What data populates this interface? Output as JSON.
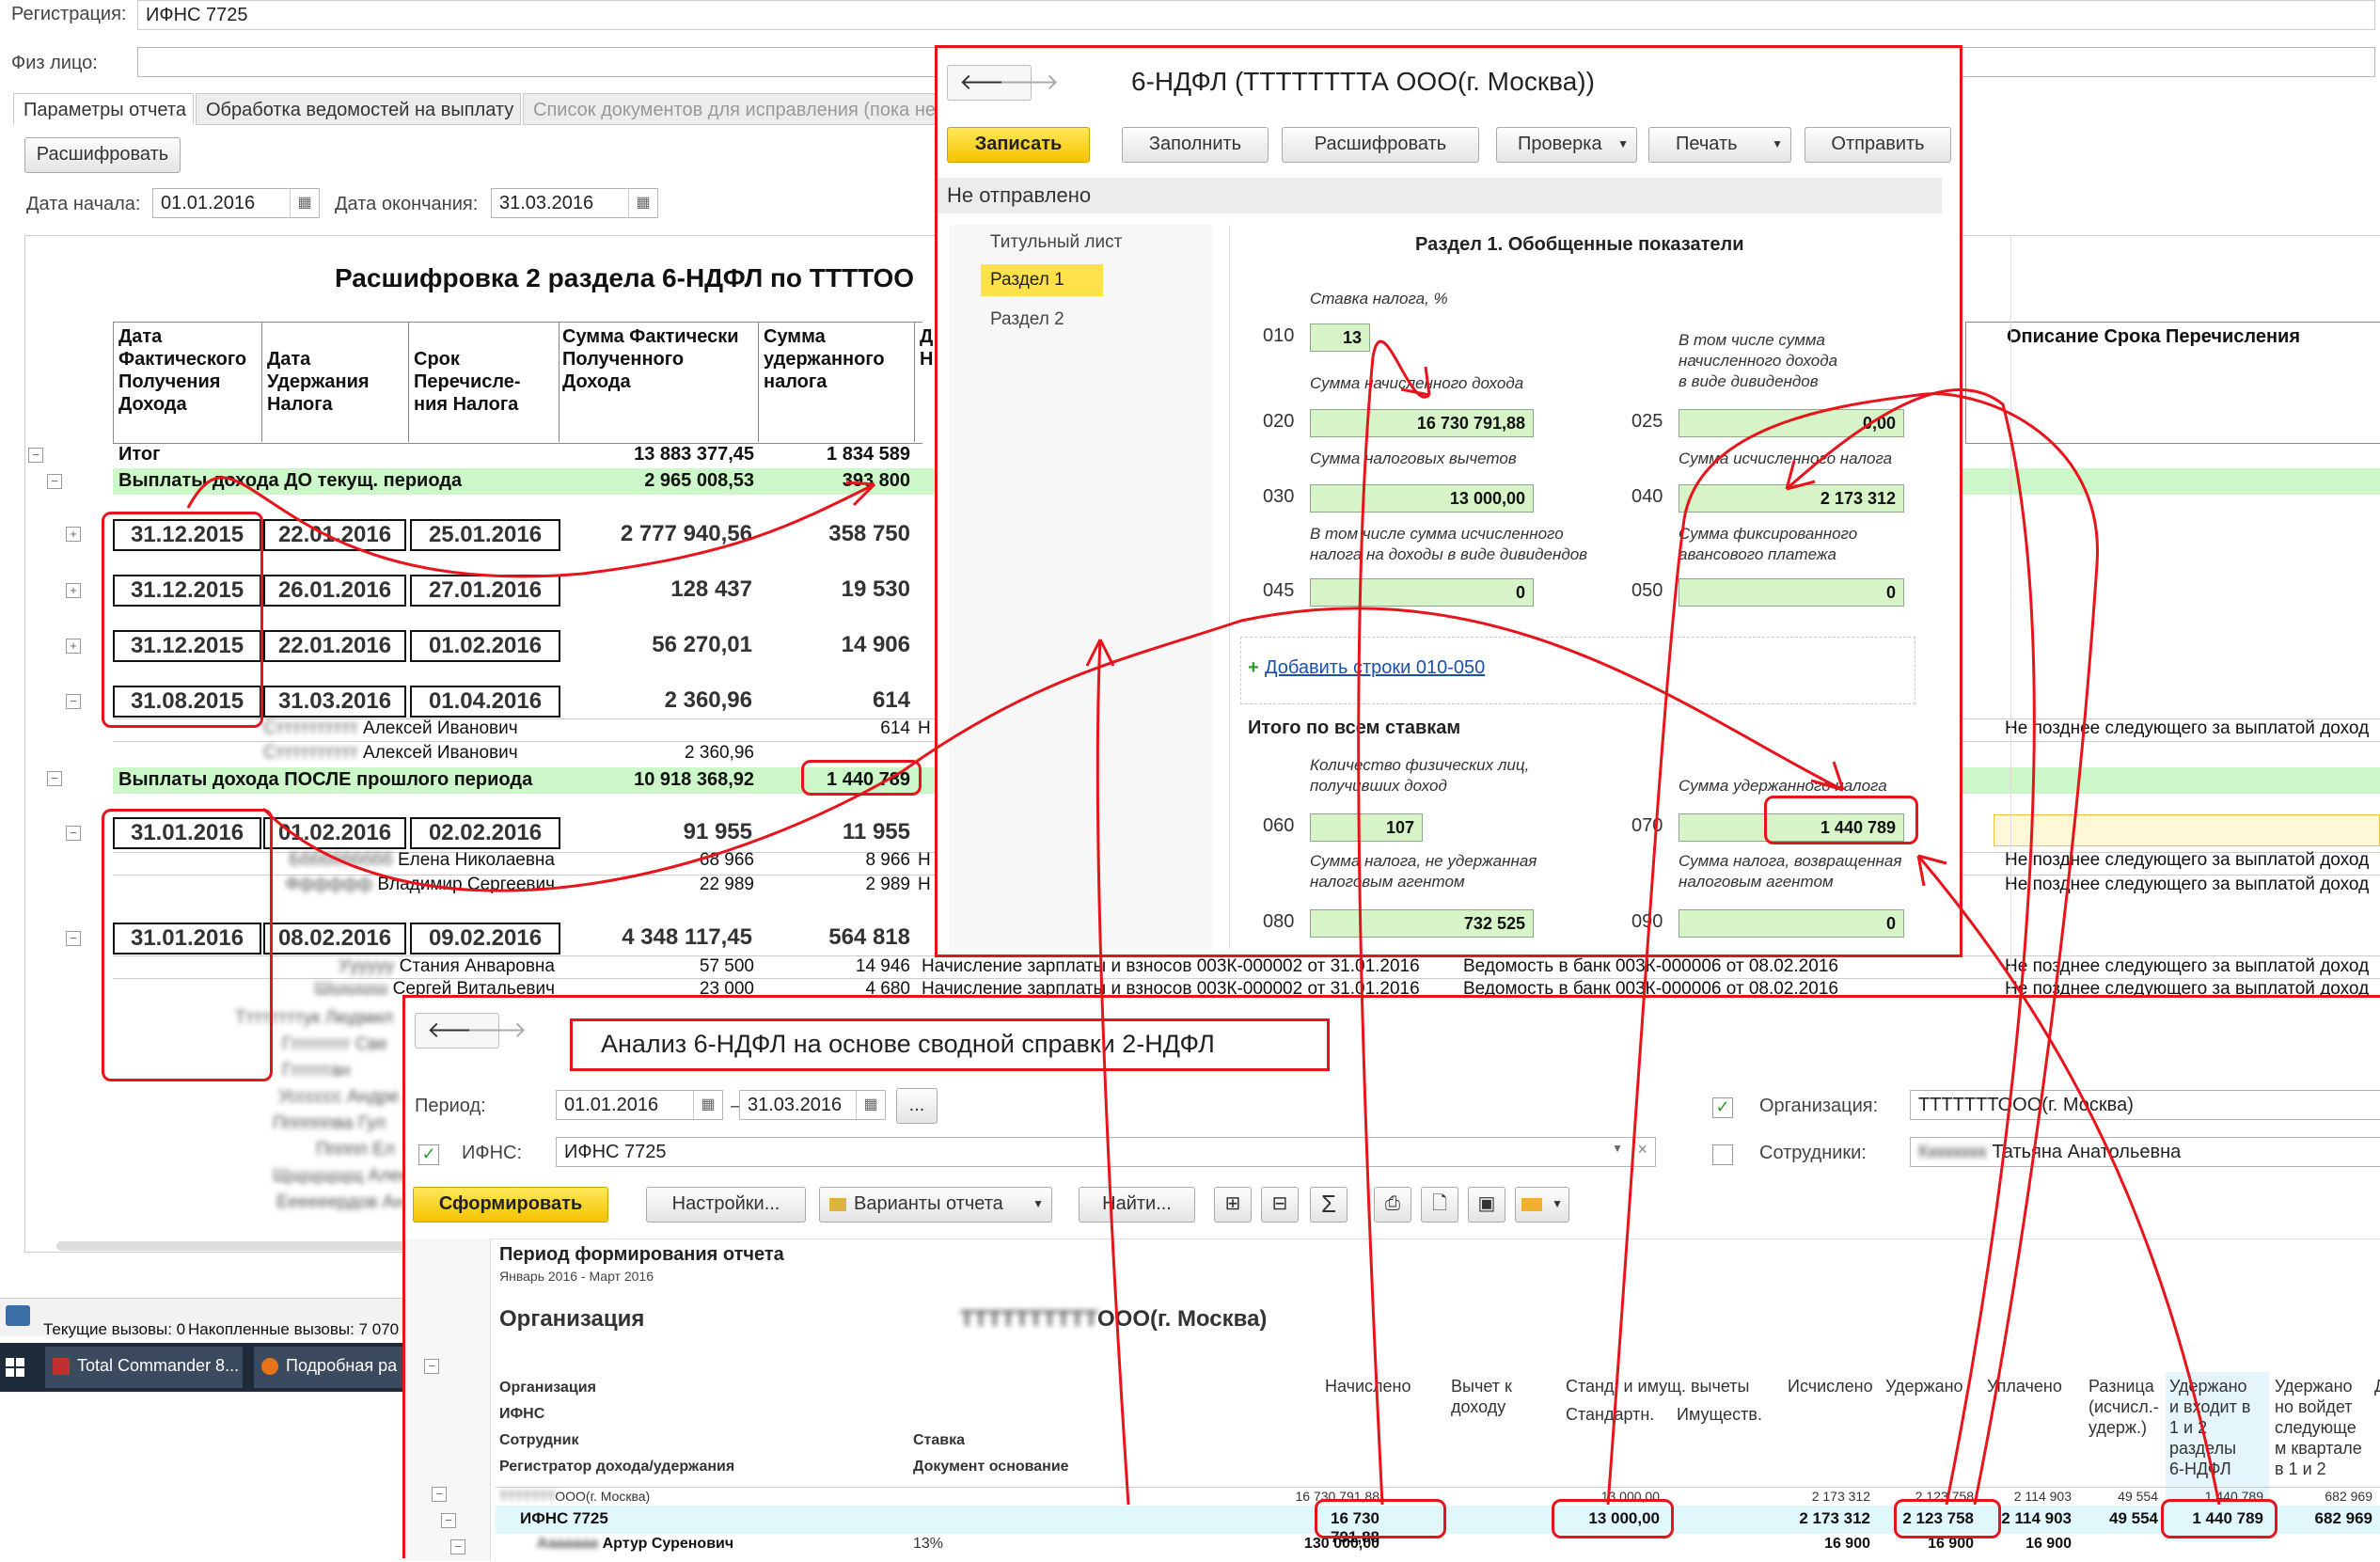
{
  "bg": {
    "registration_label": "Регистрация:",
    "registration_value": "ИФНС 7725",
    "person_label": "Физ лицо:",
    "tabs": [
      "Параметры отчета",
      "Обработка ведомостей на выплату",
      "Список документов для исправления (пока не"
    ],
    "decode_button": "Расшифровать",
    "start_label": "Дата начала:",
    "start_value": "01.01.2016",
    "end_label": "Дата окончания:",
    "end_value": "31.03.2016",
    "report_title": "Расшифровка 2 раздела 6-НДФЛ по ТТТТОО",
    "col_headers": [
      "Дата\nФактического\nПолучения\nДохода",
      "Дата\nУдержания\nНалога",
      "Срок\nПеречисле-\nния Налога",
      "Сумма Фактически\nПолученного\nДохода",
      "Сумма\nудержанного\nналога",
      "Д\nН"
    ],
    "desc_header": "Описание Срока Перечисления",
    "total_label": "Итог",
    "total_income": "13 883 377,45",
    "total_tax": "1 834 589",
    "group1_label": "Выплаты дохода ДО текущ. периода",
    "group1_income": "2 965 008,53",
    "group1_tax": "393 800",
    "group2_label": "Выплаты дохода ПОСЛЕ прошлого периода",
    "group2_income": "10 918 368,92",
    "group2_tax": "1 440 789",
    "rows": [
      {
        "d1": "31.12.2015",
        "d2": "22.01.2016",
        "d3": "25.01.2016",
        "inc": "2 777 940,56",
        "tax": "358 750"
      },
      {
        "d1": "31.12.2015",
        "d2": "26.01.2016",
        "d3": "27.01.2016",
        "inc": "128 437",
        "tax": "19 530"
      },
      {
        "d1": "31.12.2015",
        "d2": "22.01.2016",
        "d3": "01.02.2016",
        "inc": "56 270,01",
        "tax": "14 906"
      },
      {
        "d1": "31.08.2015",
        "d2": "31.03.2016",
        "d3": "01.04.2016",
        "inc": "2 360,96",
        "tax": "614"
      },
      {
        "d1": "31.01.2016",
        "d2": "01.02.2016",
        "d3": "02.02.2016",
        "inc": "91 955",
        "tax": "11 955"
      },
      {
        "d1": "31.01.2016",
        "d2": "08.02.2016",
        "d3": "09.02.2016",
        "inc": "4 348 117,45",
        "tax": "564 818"
      }
    ],
    "person_rows": [
      {
        "name": "Алексей Иванович",
        "inc": "",
        "tax": "614",
        "mark": "Н",
        "desc": "Не позднее следующего за выплатой доход"
      },
      {
        "name": "Алексей Иванович",
        "inc": "2 360,96",
        "tax": "",
        "mark": "",
        "desc": ""
      },
      {
        "name": "Елена Николаевна",
        "inc": "68 966",
        "tax": "8 966",
        "mark": "Н",
        "desc": "Не позднее следующего за выплатой доход"
      },
      {
        "name": "Владимир Сергеевич",
        "inc": "22 989",
        "tax": "2 989",
        "mark": "Н",
        "desc": "Не позднее следующего за выплатой доход"
      },
      {
        "name": "Стания Анваровна",
        "inc": "57 500",
        "tax": "14 946",
        "mark": "",
        "desc": "Не позднее следующего за выплатой доход"
      },
      {
        "name": "Сергей Витальевич",
        "inc": "23 000",
        "tax": "4 680",
        "mark": "",
        "desc": "Не позднее следующего за выплатой доход"
      }
    ],
    "doc_rows": [
      {
        "doc1": "Начисление зарплаты и взносов 003К-000002 от 31.01.2016",
        "doc2": "Ведомость в банк 003К-000006 от 08.02.2016"
      },
      {
        "doc1": "Начисление зарплаты и взносов 003К-000002 от 31.01.2016",
        "doc2": "Ведомость в банк 003К-000006 от 08.02.2016"
      }
    ],
    "status_calls": "Текущие вызовы: 0",
    "status_accum": "Накопленные вызовы: 7 070",
    "taskbar_items": [
      "Total Commander 8...",
      "Подробная ра"
    ]
  },
  "ndfl_window": {
    "title": "6-НДФЛ (ТТТТТТТТА ООО(г. Москва))",
    "buttons": [
      "Записать",
      "Заполнить",
      "Расшифровать",
      "Проверка",
      "Печать",
      "Отправить"
    ],
    "status": "Не отправлено",
    "nav": [
      "Титульный лист",
      "Раздел 1",
      "Раздел 2"
    ],
    "section_title": "Раздел 1. Обобщенные показатели",
    "fields": [
      {
        "code": "010",
        "label": "Ставка налога, %",
        "value": "13"
      },
      {
        "code": "020",
        "label": "Сумма начисленного дохода",
        "value": "16 730 791,88"
      },
      {
        "code": "025",
        "label": "В том числе сумма\nначисленного дохода\nв виде дивидендов",
        "value": "0,00"
      },
      {
        "code": "030",
        "label": "Сумма налоговых вычетов",
        "value": "13 000,00"
      },
      {
        "code": "040",
        "label": "Сумма исчисленного налога",
        "value": "2 173 312"
      },
      {
        "code": "045",
        "label": "В том числе сумма исчисленного\nналога на доходы в виде дивидендов",
        "value": "0"
      },
      {
        "code": "050",
        "label": "Сумма фиксированного\nавансового платежа",
        "value": "0"
      }
    ],
    "add_rows_link": "Добавить строки 010-050",
    "totals_title": "Итого по всем ставкам",
    "totals": [
      {
        "code": "060",
        "label": "Количество физических лиц,\nполучивших доход",
        "value": "107"
      },
      {
        "code": "070",
        "label": "Сумма удержанного налога",
        "value": "1 440 789"
      },
      {
        "code": "080",
        "label": "Сумма налога, не удержанная\nналоговым агентом",
        "value": "732 525"
      },
      {
        "code": "090",
        "label": "Сумма налога, возвращенная\nналоговым агентом",
        "value": "0"
      }
    ]
  },
  "analysis_window": {
    "title": "Анализ 6-НДФЛ на основе сводной справки 2-НДФЛ",
    "period_label": "Период:",
    "period_from": "01.01.2016",
    "period_dash": "–",
    "period_to": "31.03.2016",
    "ellipsis": "...",
    "org_label": "Организация:",
    "org_value": "ТТТТТТТООО(г. Москва)",
    "ifns_label": "ИФНС:",
    "ifns_value": "ИФНС 7725",
    "emp_label": "Сотрудники:",
    "emp_value": "Татьяна Анатольевна",
    "buttons": [
      "Сформировать",
      "Настройки...",
      "Варианты отчета",
      "Найти..."
    ],
    "report_period_title": "Период формирования отчета",
    "report_period_value": "Январь 2016 - Март 2016",
    "org_header": "Организация",
    "org_name": "ТТТТТТТТТТООО(г. Москва)",
    "tree_headers": [
      "Организация",
      "ИФНС",
      "Сотрудник",
      "Регистратор дохода/удержания"
    ],
    "tree_headers2": [
      "Ставка",
      "Документ основание"
    ],
    "columns": [
      "Начислено",
      "Вычет к\nдоходу",
      "Станд. и имущ. вычеты",
      "Стандартн.",
      "Имуществ.",
      "Исчислено",
      "Удержано",
      "Уплачено",
      "Разница\n(исчисл.-\nудерж.)",
      "Удержано\nи входит в\n1 и 2\nразделы\n6-НДФЛ",
      "Удержано\nно войдет\nследующе\nм квартале\nв 1 и 2",
      "Д"
    ],
    "row_org": {
      "name": "ТТТТТТООО(г. Москва)",
      "accrued": "16 730 791,88",
      "std": "13 000,00",
      "calc": "2 173 312",
      "withheld": "2 123 758",
      "paid": "2 114 903",
      "diff": "49 554",
      "in_ndfl": "1 440 789",
      "next_q": "682 969"
    },
    "row_ifns": {
      "name": "ИФНС 7725",
      "accrued": "16 730 791,88",
      "std": "13 000,00",
      "calc": "2 173 312",
      "withheld": "2 123 758",
      "paid": "2 114 903",
      "diff": "49 554",
      "in_ndfl": "1 440 789",
      "next_q": "682 969"
    },
    "row_emp": {
      "name": "Артур Суренович",
      "rate": "13%",
      "accrued": "130 000,00",
      "calc": "16 900",
      "withheld": "16 900",
      "paid": "16 900"
    }
  },
  "accent": "#e8141b"
}
